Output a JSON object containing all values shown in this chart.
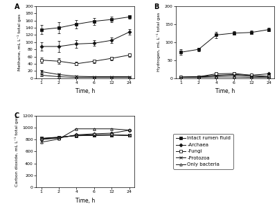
{
  "time": [
    1,
    2,
    4,
    6,
    12,
    24
  ],
  "time_pos": [
    0,
    1,
    2,
    3,
    4,
    5
  ],
  "time_labels": [
    "1",
    "2",
    "4",
    "6",
    "12",
    "24"
  ],
  "methane": {
    "intact_rumen_fluid": [
      135,
      140,
      150,
      158,
      163,
      170
    ],
    "archaea": [
      88,
      88,
      95,
      97,
      105,
      128
    ],
    "fungi": [
      50,
      47,
      40,
      47,
      55,
      64
    ],
    "protozoa": [
      18,
      10,
      5,
      4,
      4,
      4
    ],
    "only_bacteria": [
      8,
      4,
      2,
      2,
      2,
      2
    ]
  },
  "methane_err": {
    "intact_rumen_fluid": [
      12,
      15,
      12,
      10,
      8,
      5
    ],
    "archaea": [
      12,
      15,
      10,
      8,
      8,
      8
    ],
    "fungi": [
      8,
      8,
      5,
      5,
      5,
      5
    ],
    "protozoa": [
      5,
      3,
      2,
      2,
      2,
      2
    ],
    "only_bacteria": [
      3,
      2,
      1,
      1,
      1,
      1
    ]
  },
  "hydrogen": {
    "intact_rumen_fluid": [
      72,
      80,
      120,
      125,
      127,
      135
    ],
    "archaea": [
      3,
      4,
      8,
      10,
      8,
      12
    ],
    "fungi": [
      3,
      4,
      12,
      13,
      8,
      5
    ],
    "protozoa": [
      2,
      3,
      6,
      8,
      5,
      3
    ],
    "only_bacteria": [
      2,
      2,
      3,
      3,
      2,
      2
    ]
  },
  "hydrogen_err": {
    "intact_rumen_fluid": [
      8,
      5,
      8,
      5,
      5,
      5
    ],
    "archaea": [
      1,
      1,
      2,
      2,
      2,
      2
    ],
    "fungi": [
      1,
      1,
      2,
      3,
      2,
      2
    ],
    "protozoa": [
      1,
      1,
      2,
      2,
      2,
      1
    ],
    "only_bacteria": [
      0.5,
      0.5,
      1,
      1,
      0.5,
      0.5
    ]
  },
  "co2": {
    "intact_rumen_fluid": [
      820,
      840,
      862,
      870,
      875,
      870
    ],
    "archaea": [
      800,
      825,
      878,
      895,
      905,
      955
    ],
    "fungi": [
      810,
      830,
      870,
      878,
      880,
      868
    ],
    "protozoa": [
      815,
      835,
      868,
      870,
      873,
      868
    ],
    "only_bacteria": [
      755,
      808,
      978,
      978,
      978,
      958
    ]
  },
  "co2_err": {
    "intact_rumen_fluid": [
      12,
      12,
      12,
      12,
      12,
      12
    ],
    "archaea": [
      12,
      12,
      12,
      12,
      12,
      12
    ],
    "fungi": [
      12,
      12,
      12,
      12,
      12,
      12
    ],
    "protozoa": [
      12,
      12,
      12,
      12,
      12,
      12
    ],
    "only_bacteria": [
      12,
      12,
      12,
      12,
      12,
      12
    ]
  },
  "colors": {
    "intact_rumen_fluid": "#111111",
    "archaea": "#111111",
    "fungi": "#111111",
    "protozoa": "#111111",
    "only_bacteria": "#111111"
  },
  "markers": {
    "intact_rumen_fluid": "s",
    "archaea": "D",
    "fungi": "s",
    "protozoa": "x",
    "only_bacteria": "^"
  },
  "markerfacecolors": {
    "intact_rumen_fluid": "#111111",
    "archaea": "#111111",
    "fungi": "white",
    "protozoa": "white",
    "only_bacteria": "white"
  },
  "legend_labels": [
    "Intact rumen fluid",
    "-Archaea",
    "-Fungi",
    "-Protozoa",
    "Only bacteria"
  ],
  "background_color": "#ffffff",
  "methane_ylim": [
    0,
    200
  ],
  "methane_yticks": [
    0,
    20,
    40,
    60,
    80,
    100,
    120,
    140,
    160,
    180,
    200
  ],
  "hydrogen_ylim": [
    0,
    200
  ],
  "hydrogen_yticks": [
    0,
    50,
    100,
    150,
    200
  ],
  "co2_ylim": [
    0,
    1200
  ],
  "co2_yticks": [
    0,
    200,
    400,
    600,
    800,
    1000,
    1200
  ]
}
